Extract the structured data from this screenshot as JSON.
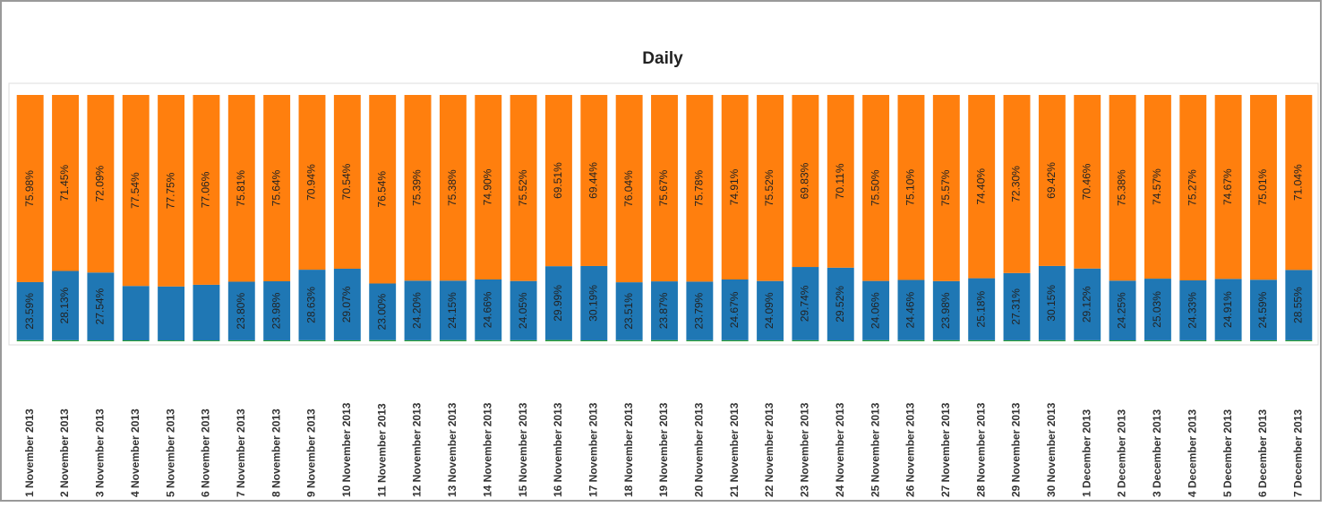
{
  "chart_data": {
    "type": "bar",
    "stacked": true,
    "title": "Daily",
    "categories": [
      "1 November 2013",
      "2 November 2013",
      "3 November 2013",
      "4 November 2013",
      "5 November 2013",
      "6 November 2013",
      "7 November 2013",
      "8 November 2013",
      "9 November 2013",
      "10 November 2013",
      "11 November 2013",
      "12 November 2013",
      "13 November 2013",
      "14 November 2013",
      "15 November 2013",
      "16 November 2013",
      "17 November 2013",
      "18 November 2013",
      "19 November 2013",
      "20 November 2013",
      "21 November 2013",
      "22 November 2013",
      "23 November 2013",
      "24 November 2013",
      "25 November 2013",
      "26 November 2013",
      "27 November 2013",
      "28 November 2013",
      "29 November 2013",
      "30 November 2013",
      "1 December 2013",
      "2 December 2013",
      "3 December 2013",
      "4 December 2013",
      "5 December 2013",
      "6 December 2013",
      "7 December 2013"
    ],
    "ylim": [
      0,
      100
    ],
    "series": [
      {
        "color": "#2ca02c",
        "values": [
          0.43,
          0.42,
          0.37,
          0.36,
          0.35,
          0.34,
          0.39,
          0.38,
          0.43,
          0.39,
          0.46,
          0.41,
          0.47,
          0.44,
          0.43,
          0.5,
          0.37,
          0.45,
          0.46,
          0.43,
          0.42,
          0.39,
          0.43,
          0.37,
          0.44,
          0.44,
          0.45,
          0.42,
          0.39,
          0.43,
          0.42,
          0.37,
          0.4,
          0.4,
          0.42,
          0.4,
          0.41
        ]
      },
      {
        "color": "#1f77b4",
        "values": [
          23.59,
          28.13,
          27.54,
          22.1,
          21.9,
          22.6,
          23.8,
          23.98,
          28.63,
          29.07,
          23.0,
          24.2,
          24.15,
          24.66,
          24.05,
          29.99,
          30.19,
          23.51,
          23.87,
          23.79,
          24.67,
          24.09,
          29.74,
          29.52,
          24.06,
          24.46,
          23.98,
          25.18,
          27.31,
          30.15,
          29.12,
          24.25,
          25.03,
          24.33,
          24.91,
          24.59,
          28.55
        ],
        "value_labels": [
          "23.59%",
          "28.13%",
          "27.54%",
          null,
          null,
          null,
          "23.80%",
          "23.98%",
          "28.63%",
          "29.07%",
          "23.00%",
          "24.20%",
          "24.15%",
          "24.66%",
          "24.05%",
          "29.99%",
          "30.19%",
          "23.51%",
          "23.87%",
          "23.79%",
          "24.67%",
          "24.09%",
          "29.74%",
          "29.52%",
          "24.06%",
          "24.46%",
          "23.98%",
          "25.18%",
          "27.31%",
          "30.15%",
          "29.12%",
          "24.25%",
          "25.03%",
          "24.33%",
          "24.91%",
          "24.59%",
          "28.55%"
        ]
      },
      {
        "color": "#ff7f0e",
        "values": [
          75.98,
          71.45,
          72.09,
          77.54,
          77.75,
          77.06,
          75.81,
          75.64,
          70.94,
          70.54,
          76.54,
          75.39,
          75.38,
          74.9,
          75.52,
          69.51,
          69.44,
          76.04,
          75.67,
          75.78,
          74.91,
          75.52,
          69.83,
          70.11,
          75.5,
          75.1,
          75.57,
          74.4,
          72.3,
          69.42,
          70.46,
          75.38,
          74.57,
          75.27,
          74.67,
          75.01,
          71.04
        ],
        "value_labels": [
          "75.98%",
          "71.45%",
          "72.09%",
          "77.54%",
          "77.75%",
          "77.06%",
          "75.81%",
          "75.64%",
          "70.94%",
          "70.54%",
          "76.54%",
          "75.39%",
          "75.38%",
          "74.90%",
          "75.52%",
          "69.51%",
          "69.44%",
          "76.04%",
          "75.67%",
          "75.78%",
          "74.91%",
          "75.52%",
          "69.83%",
          "70.11%",
          "75.50%",
          "75.10%",
          "75.57%",
          "74.40%",
          "72.30%",
          "69.42%",
          "70.46%",
          "75.38%",
          "74.57%",
          "75.27%",
          "74.67%",
          "75.01%",
          "71.04%"
        ]
      }
    ]
  }
}
